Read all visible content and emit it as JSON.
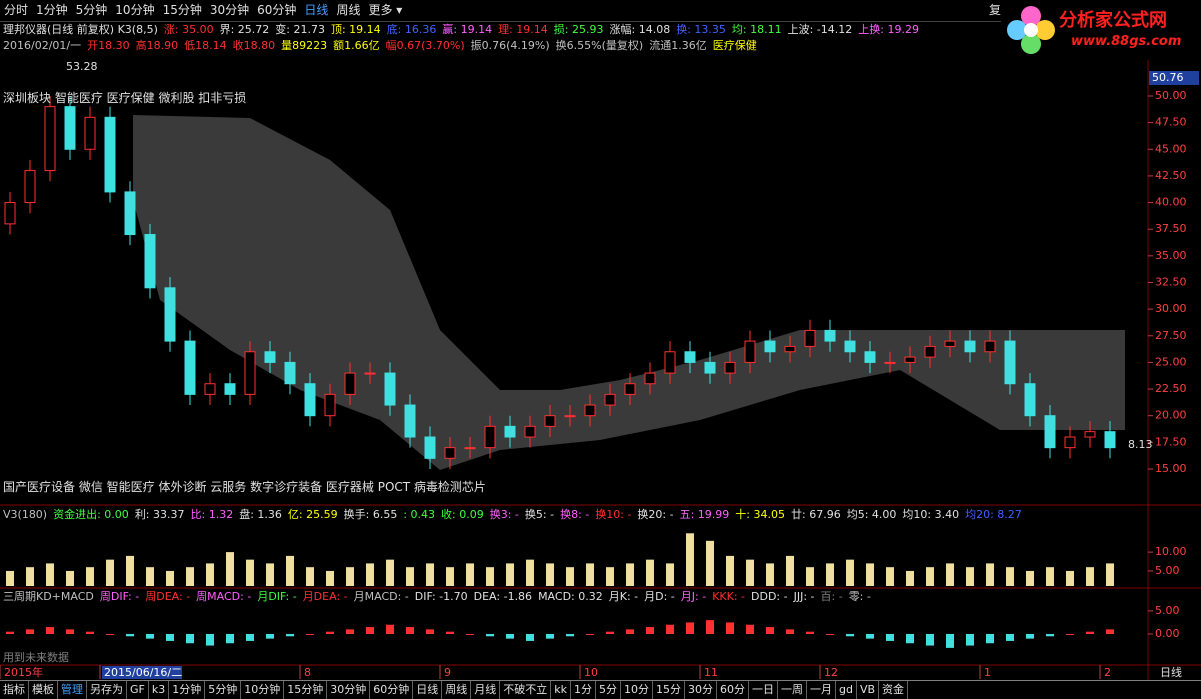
{
  "menu": {
    "items": [
      "分时",
      "1分钟",
      "5分钟",
      "10分钟",
      "15分钟",
      "30分钟",
      "60分钟",
      "日线",
      "周线",
      "更多 ▾"
    ],
    "active": 7,
    "right": "复"
  },
  "logo": {
    "title": "分析家公式网",
    "url": "www.88gs.com"
  },
  "info": {
    "line1": [
      {
        "text": "理邦仪器(日线 前复权) K3(8,5)",
        "color": "#e0e0e0"
      },
      {
        "text": "涨: 35.00",
        "color": "#ff3030"
      },
      {
        "text": "界: 25.72",
        "color": "#e0e0e0"
      },
      {
        "text": "变: 21.73",
        "color": "#e0e0e0"
      },
      {
        "text": "顶: 19.14",
        "color": "#ffff00"
      },
      {
        "text": "底: 16.36",
        "color": "#4060ff"
      },
      {
        "text": "赢: 19.14",
        "color": "#ff60ff"
      },
      {
        "text": "理: 19.14",
        "color": "#ff3030"
      },
      {
        "text": "损: 25.93",
        "color": "#40ff40"
      },
      {
        "text": "涨幅: 14.08",
        "color": "#e0e0e0"
      },
      {
        "text": "换: 13.35",
        "color": "#4060ff"
      },
      {
        "text": "均: 18.11",
        "color": "#40ff40"
      },
      {
        "text": "上波: -14.12",
        "color": "#e0e0e0"
      },
      {
        "text": "上换: 19.29",
        "color": "#ff60ff"
      }
    ],
    "line2": [
      {
        "text": "2016/02/01/一",
        "color": "#c0c0c0"
      },
      {
        "text": "开18.30",
        "color": "#ff3030"
      },
      {
        "text": "高18.90",
        "color": "#ff3030"
      },
      {
        "text": "低18.14",
        "color": "#ff3030"
      },
      {
        "text": "收18.80",
        "color": "#ff3030"
      },
      {
        "text": "量89223",
        "color": "#ffff00"
      },
      {
        "text": "额1.66亿",
        "color": "#ffff00"
      },
      {
        "text": "幅0.67(3.70%)",
        "color": "#ff3030"
      },
      {
        "text": "振0.76(4.19%)",
        "color": "#c0c0c0"
      },
      {
        "text": "换6.55%(量复权)",
        "color": "#c0c0c0"
      },
      {
        "text": "流通1.36亿",
        "color": "#c0c0c0"
      },
      {
        "text": "医疗保健",
        "color": "#ffff00"
      }
    ]
  },
  "concepts_top": "深圳板块 智能医疗 医疗保健 微利股 扣非亏损",
  "concepts_bottom": "国产医疗设备 微信 智能医疗 体外诊断 云服务 数字诊疗装备 医疗器械 POCT 病毒检测芯片",
  "price_chart": {
    "type": "candlestick",
    "open": [
      38,
      40,
      43,
      49,
      45,
      48,
      41,
      37,
      32,
      27,
      22,
      23,
      22,
      26,
      25,
      23,
      20,
      22,
      24,
      24,
      21,
      18,
      16,
      17,
      17,
      19,
      18,
      19,
      20,
      20,
      21,
      22,
      23,
      24,
      26,
      25,
      24,
      25,
      27,
      26,
      26.5,
      28,
      27,
      26,
      25,
      25,
      25.5,
      26.5,
      27,
      26,
      27,
      23,
      20,
      17,
      18,
      18.5
    ],
    "close": [
      40,
      43,
      49,
      45,
      48,
      41,
      37,
      32,
      27,
      22,
      23,
      22,
      26,
      25,
      23,
      20,
      22,
      24,
      24,
      21,
      18,
      16,
      17,
      17,
      19,
      18,
      19,
      20,
      20,
      21,
      22,
      23,
      24,
      26,
      25,
      24,
      25,
      27,
      26,
      26.5,
      28,
      27,
      26,
      25,
      25,
      25.5,
      26.5,
      27,
      26,
      27,
      23,
      20,
      17,
      18,
      18.5,
      17
    ],
    "high": [
      41,
      44,
      50,
      50,
      49,
      49,
      42,
      38,
      33,
      28,
      24,
      24,
      27,
      27,
      26,
      24,
      23,
      25,
      25,
      25,
      22,
      19,
      18,
      18,
      20,
      20,
      20,
      21,
      21,
      22,
      23,
      24,
      25,
      27,
      27,
      26,
      26,
      28,
      28,
      27.5,
      29,
      29,
      28,
      27,
      26,
      26.5,
      27.5,
      28,
      28,
      28,
      28,
      24,
      21,
      19,
      19.5,
      19.5
    ],
    "low": [
      37,
      39,
      42,
      44,
      44,
      40,
      36,
      31,
      26,
      21,
      21,
      21,
      21,
      24,
      22,
      19,
      19,
      21,
      23,
      20,
      17,
      15,
      15,
      16,
      16,
      17,
      17,
      18,
      19,
      19,
      20,
      21,
      22,
      23,
      24,
      23,
      23,
      24,
      25,
      25,
      25.5,
      26,
      25,
      24,
      24,
      24,
      24.5,
      25.5,
      25,
      25,
      22,
      19,
      16,
      16,
      17,
      16
    ],
    "up_color": "#ff3030",
    "down_color": "#40e0e0",
    "ylim": [
      11.62,
      53.94
    ],
    "yticks": [
      {
        "value": 15,
        "label": "15.00"
      },
      {
        "value": 17.5,
        "label": "17.50"
      },
      {
        "value": 20,
        "label": "20.00"
      },
      {
        "value": 22.5,
        "label": "22.50"
      },
      {
        "value": 25,
        "label": "25.00"
      },
      {
        "value": 27.5,
        "label": "27.50"
      },
      {
        "value": 30,
        "label": "30.00"
      },
      {
        "value": 32.5,
        "label": "32.50"
      },
      {
        "value": 35,
        "label": "35.00"
      },
      {
        "value": 37.5,
        "label": "37.50"
      },
      {
        "value": 40,
        "label": "40.00"
      },
      {
        "value": 42.5,
        "label": "42.50"
      },
      {
        "value": 45,
        "label": "45.00"
      },
      {
        "value": 47.5,
        "label": "47.50"
      },
      {
        "value": 50,
        "label": "50.00"
      }
    ],
    "high_label": "53.28",
    "cursor_label": "50.76",
    "last_label": "8.13"
  },
  "volume_chart": {
    "type": "bar",
    "header": [
      {
        "text": "V3(180)",
        "color": "#c0c0c0"
      },
      {
        "text": "资金进出: 0.00",
        "color": "#40ff40"
      },
      {
        "text": "利: 33.37",
        "color": "#e0e0e0"
      },
      {
        "text": "比: 1.32",
        "color": "#ff60ff"
      },
      {
        "text": "盘: 1.36",
        "color": "#e0e0e0"
      },
      {
        "text": "亿: 25.59",
        "color": "#ffff00"
      },
      {
        "text": "换手: 6.55",
        "color": "#e0e0e0"
      },
      {
        "text": ": 0.43",
        "color": "#40ff40"
      },
      {
        "text": "收: 0.09",
        "color": "#40ff40"
      },
      {
        "text": "换3: -",
        "color": "#ff60ff"
      },
      {
        "text": "换5: -",
        "color": "#e0e0e0"
      },
      {
        "text": "换8: -",
        "color": "#ff60ff"
      },
      {
        "text": "换10: -",
        "color": "#ff3030"
      },
      {
        "text": "换20: -",
        "color": "#e0e0e0"
      },
      {
        "text": "五: 19.99",
        "color": "#ff60ff"
      },
      {
        "text": "十: 34.05",
        "color": "#ffff00"
      },
      {
        "text": "廿: 67.96",
        "color": "#e0e0e0"
      },
      {
        "text": "均5: 4.00",
        "color": "#e0e0e0"
      },
      {
        "text": "均10: 3.40",
        "color": "#e0e0e0"
      },
      {
        "text": "均20: 8.27",
        "color": "#4060ff"
      }
    ],
    "values": [
      5,
      6,
      7,
      5,
      6,
      8,
      9,
      6,
      5,
      6,
      7,
      10,
      8,
      7,
      9,
      6,
      5,
      6,
      7,
      8,
      6,
      7,
      6,
      7,
      6,
      7,
      8,
      7,
      6,
      7,
      6,
      7,
      8,
      7,
      15,
      13,
      9,
      8,
      7,
      9,
      6,
      7,
      8,
      7,
      6,
      5,
      6,
      7,
      6,
      7,
      6,
      5,
      6,
      5,
      6,
      7
    ],
    "color": "#f0e0a0",
    "ylim": [
      1,
      18
    ],
    "yticks": [
      {
        "value": 5,
        "label": "5.00"
      },
      {
        "value": 10,
        "label": "10.00"
      }
    ]
  },
  "macd_chart": {
    "type": "bar",
    "header": [
      {
        "text": "三周期KD+MACD",
        "color": "#c0c0c0"
      },
      {
        "text": "周DIF: -",
        "color": "#ff60ff"
      },
      {
        "text": "周DEA: -",
        "color": "#ff3030"
      },
      {
        "text": "周MACD: -",
        "color": "#ff60ff"
      },
      {
        "text": "月DIF: -",
        "color": "#40ff40"
      },
      {
        "text": "月DEA: -",
        "color": "#ff3030"
      },
      {
        "text": "月MACD: -",
        "color": "#c0c0c0"
      },
      {
        "text": "DIF: -1.70",
        "color": "#e0e0e0"
      },
      {
        "text": "DEA: -1.86",
        "color": "#e0e0e0"
      },
      {
        "text": "MACD: 0.32",
        "color": "#e0e0e0"
      },
      {
        "text": "月K: -",
        "color": "#e0e0e0"
      },
      {
        "text": "月D: -",
        "color": "#e0e0e0"
      },
      {
        "text": "月J: -",
        "color": "#ff60ff"
      },
      {
        "text": "KKK: -",
        "color": "#ff3030"
      },
      {
        "text": "DDD: -",
        "color": "#e0e0e0"
      },
      {
        "text": "JJJ: -",
        "color": "#e0e0e0"
      },
      {
        "text": "百: -",
        "color": "#808080"
      },
      {
        "text": "零: -",
        "color": "#c0c0c0"
      }
    ],
    "values": [
      0.5,
      1,
      1.5,
      1,
      0.5,
      0,
      -0.5,
      -1,
      -1.5,
      -2,
      -2.5,
      -2,
      -1.5,
      -1,
      -0.5,
      0,
      0.5,
      1,
      1.5,
      2,
      1.5,
      1,
      0.5,
      0,
      -0.5,
      -1,
      -1.5,
      -1,
      -0.5,
      0,
      0.5,
      1,
      1.5,
      2,
      2.5,
      3,
      2.5,
      2,
      1.5,
      1,
      0.5,
      0,
      -0.5,
      -1,
      -1.5,
      -2,
      -2.5,
      -3,
      -2.5,
      -2,
      -1.5,
      -1,
      -0.5,
      0,
      0.5,
      1
    ],
    "up_color": "#ff3030",
    "down_color": "#40e0e0",
    "ylim": [
      -6.7,
      6.7
    ],
    "yticks": [
      {
        "value": 0,
        "label": "0.00"
      },
      {
        "value": 5,
        "label": "5.00"
      }
    ],
    "note": "用到未来数据"
  },
  "date_axis": {
    "categories": [
      "2015年",
      null,
      null,
      null,
      null,
      "2015/06/16/二",
      null,
      null,
      null,
      null,
      null,
      null,
      null,
      null,
      null,
      "8",
      null,
      null,
      null,
      null,
      null,
      null,
      "9",
      null,
      null,
      null,
      null,
      null,
      null,
      "10",
      null,
      null,
      null,
      null,
      null,
      "11",
      null,
      null,
      null,
      null,
      null,
      "12",
      null,
      null,
      null,
      null,
      null,
      null,
      null,
      "1",
      null,
      null,
      null,
      null,
      null,
      "2"
    ],
    "highlight": 5,
    "right": "日线"
  },
  "toolbar": [
    "指标",
    "模板",
    "管理",
    "另存为",
    "GF",
    "k3",
    "1分钟",
    "5分钟",
    "10分钟",
    "15分钟",
    "30分钟",
    "60分钟",
    "日线",
    "周线",
    "月线",
    "不破不立",
    "kk",
    "1分",
    "5分",
    "10分",
    "15分",
    "30分",
    "60分",
    "一日",
    "一周",
    "一月",
    "gd",
    "VB",
    "资金"
  ]
}
